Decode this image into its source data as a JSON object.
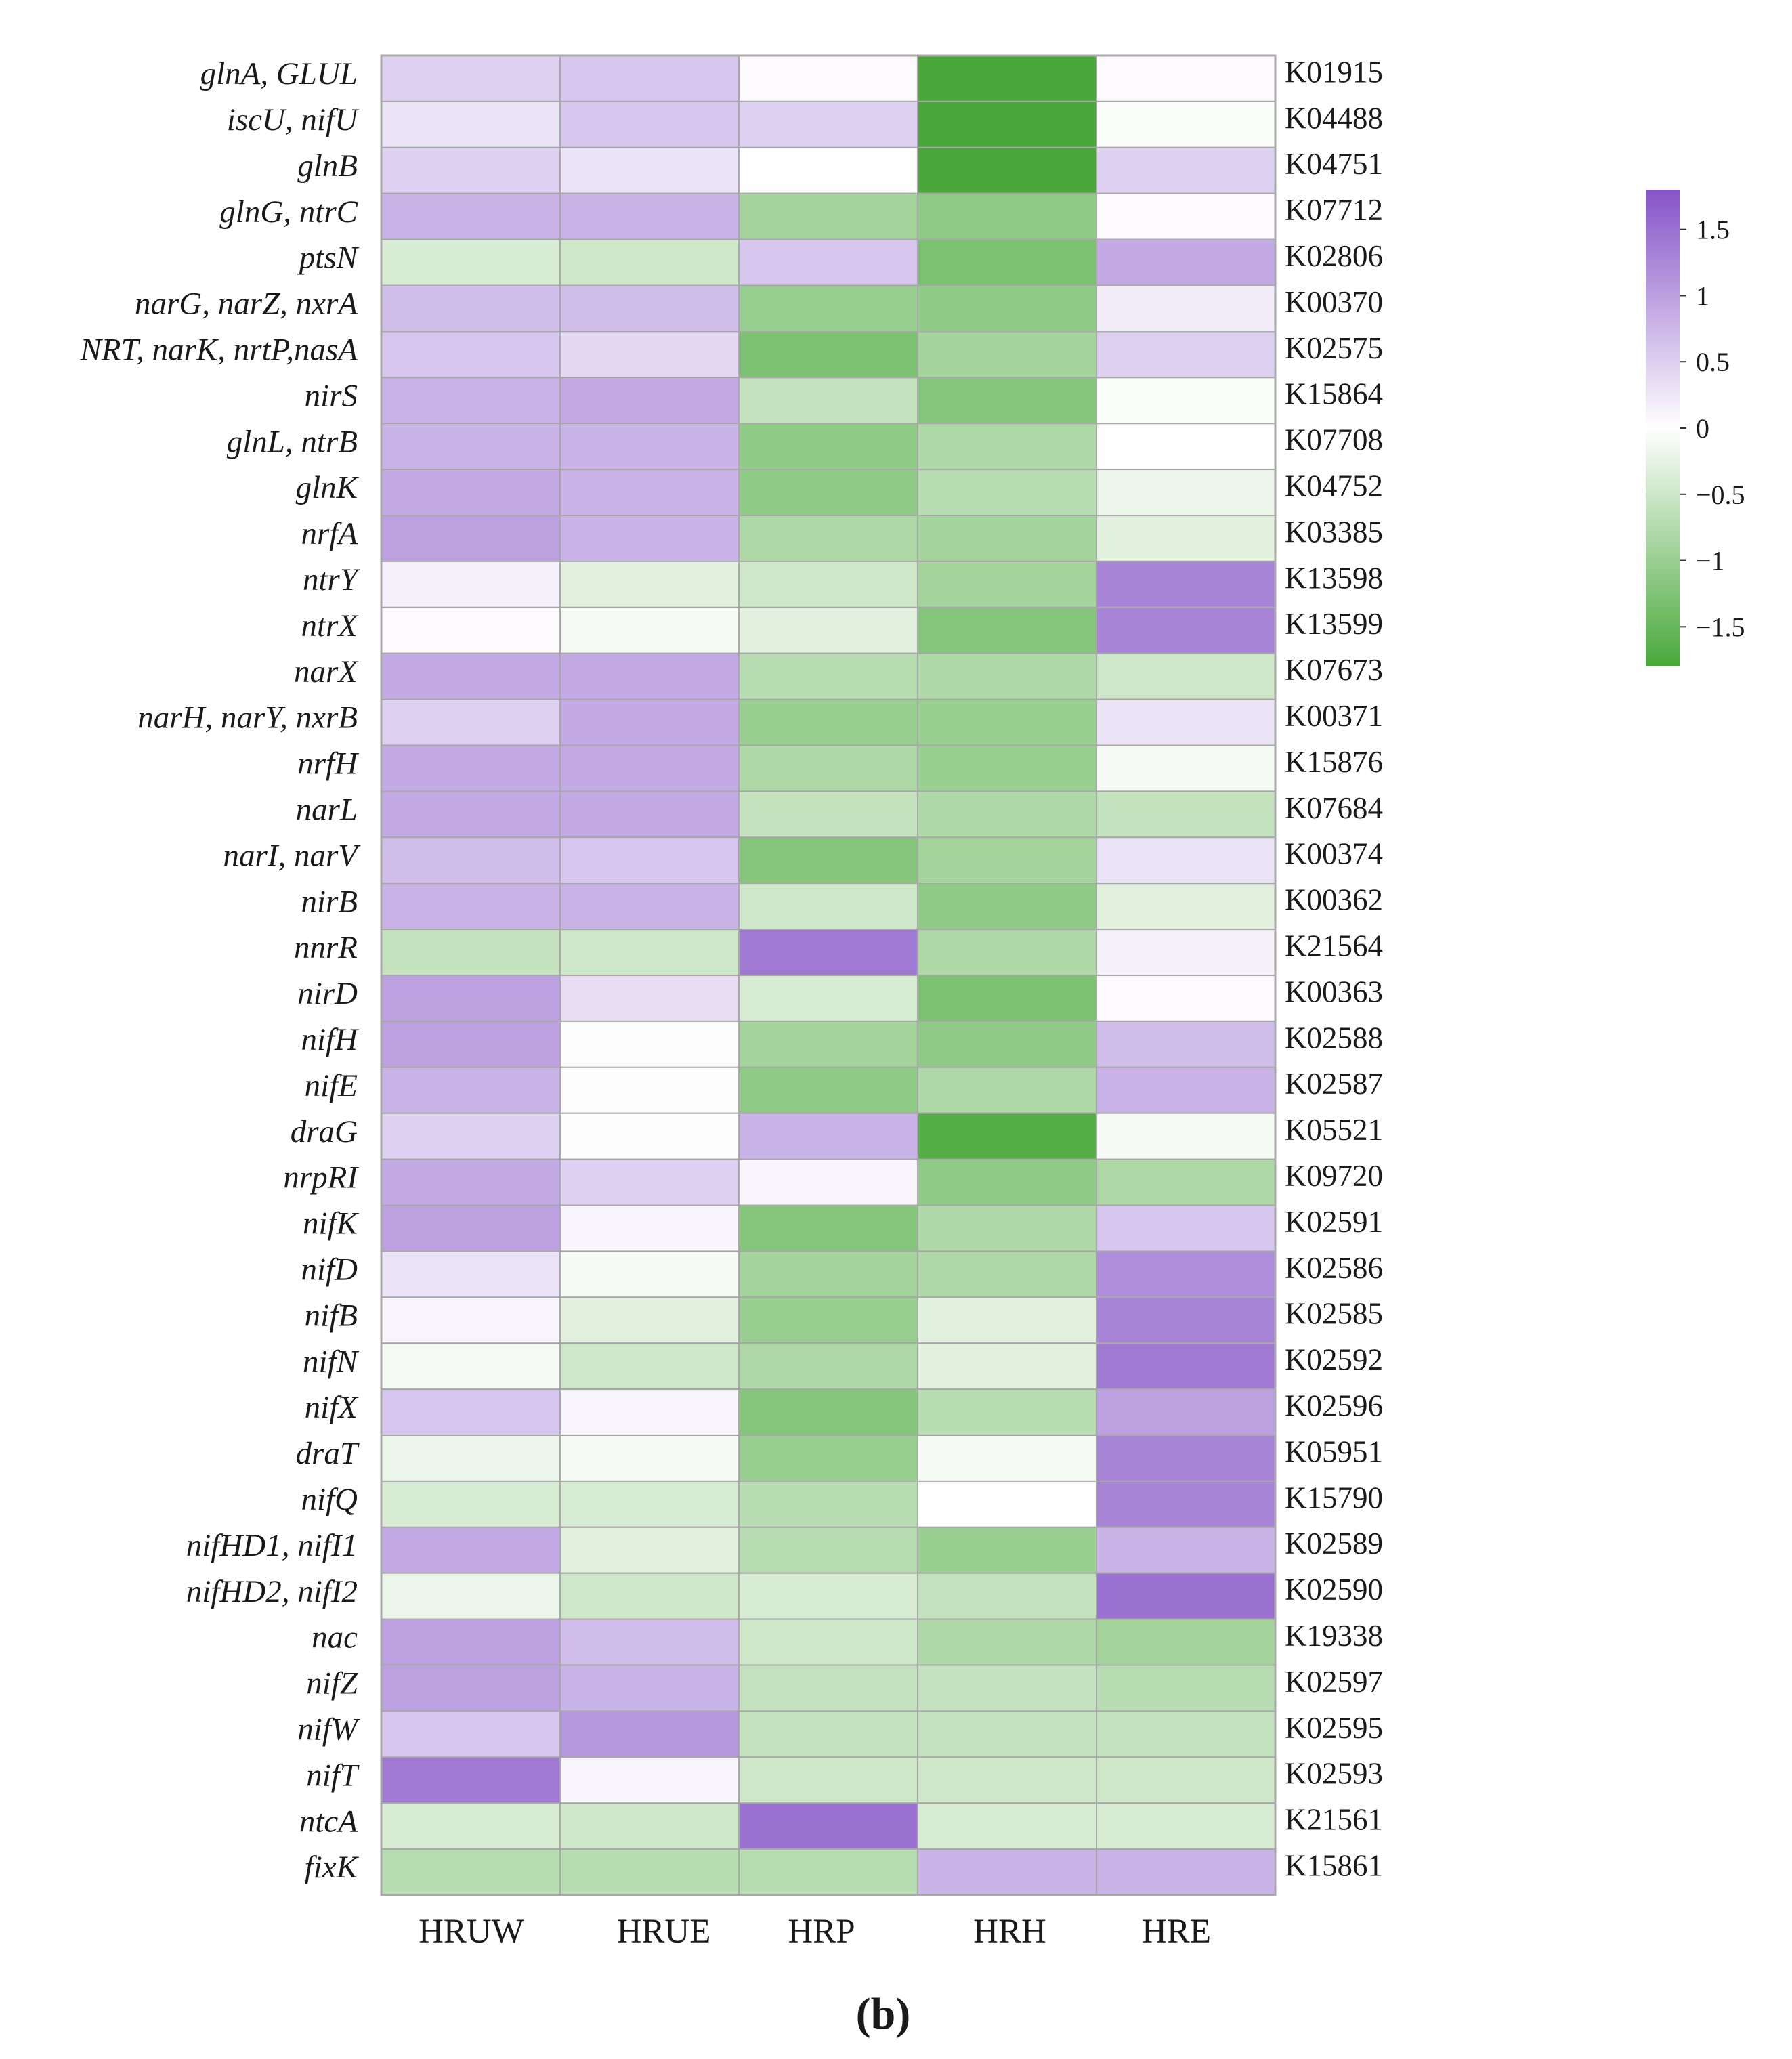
{
  "chart_data": {
    "type": "heatmap",
    "panel_label": "(b)",
    "columns": [
      "HRUW",
      "HRUE",
      "HRP",
      "HRH",
      "HRE"
    ],
    "rows": [
      {
        "gene": "glnA, GLUL",
        "ko": "K01915",
        "values": [
          0.5,
          0.6,
          0.05,
          -1.8,
          0.05
        ]
      },
      {
        "gene": "iscU, nifU",
        "ko": "K04488",
        "values": [
          0.3,
          0.6,
          0.5,
          -1.8,
          -0.05
        ]
      },
      {
        "gene": "glnB",
        "ko": "K04751",
        "values": [
          0.5,
          0.3,
          -0.02,
          -1.8,
          0.5
        ]
      },
      {
        "gene": "glnG, ntrC",
        "ko": "K07712",
        "values": [
          0.8,
          0.8,
          -0.9,
          -1.1,
          0.05
        ]
      },
      {
        "gene": "ptsN",
        "ko": "K02806",
        "values": [
          -0.4,
          -0.5,
          0.6,
          -1.3,
          0.9
        ]
      },
      {
        "gene": "narG, narZ, nxrA",
        "ko": "K00370",
        "values": [
          0.7,
          0.7,
          -1.0,
          -1.1,
          0.2
        ]
      },
      {
        "gene": "NRT, narK, nrtP,nasA",
        "ko": "K02575",
        "values": [
          0.6,
          0.4,
          -1.3,
          -0.9,
          0.5
        ]
      },
      {
        "gene": "nirS",
        "ko": "K15864",
        "values": [
          0.8,
          0.9,
          -0.6,
          -1.2,
          -0.05
        ]
      },
      {
        "gene": "glnL, ntrB",
        "ko": "K07708",
        "values": [
          0.8,
          0.8,
          -1.1,
          -0.8,
          -0.02
        ]
      },
      {
        "gene": "glnK",
        "ko": "K04752",
        "values": [
          0.9,
          0.8,
          -1.1,
          -0.7,
          -0.2
        ]
      },
      {
        "gene": "nrfA",
        "ko": "K03385",
        "values": [
          1.0,
          0.8,
          -0.8,
          -0.9,
          -0.3
        ]
      },
      {
        "gene": "ntrY",
        "ko": "K13598",
        "values": [
          0.15,
          -0.3,
          -0.5,
          -0.9,
          1.3
        ]
      },
      {
        "gene": "ntrX",
        "ko": "K13599",
        "values": [
          0.05,
          -0.1,
          -0.3,
          -1.2,
          1.3
        ]
      },
      {
        "gene": "narX",
        "ko": "K07673",
        "values": [
          0.9,
          0.9,
          -0.7,
          -0.8,
          -0.5
        ]
      },
      {
        "gene": "narH, narY, nxrB",
        "ko": "K00371",
        "values": [
          0.5,
          0.9,
          -1.0,
          -1.0,
          0.3
        ]
      },
      {
        "gene": "nrfH",
        "ko": "K15876",
        "values": [
          0.9,
          0.9,
          -0.8,
          -1.0,
          -0.1
        ]
      },
      {
        "gene": "narL",
        "ko": "K07684",
        "values": [
          0.9,
          0.9,
          -0.6,
          -0.8,
          -0.6
        ]
      },
      {
        "gene": "narI, narV",
        "ko": "K00374",
        "values": [
          0.7,
          0.6,
          -1.2,
          -0.9,
          0.3
        ]
      },
      {
        "gene": "nirB",
        "ko": "K00362",
        "values": [
          0.8,
          0.8,
          -0.5,
          -1.1,
          -0.3
        ]
      },
      {
        "gene": "nnrR",
        "ko": "K21564",
        "values": [
          -0.6,
          -0.5,
          1.4,
          -0.8,
          0.15
        ]
      },
      {
        "gene": "nirD",
        "ko": "K00363",
        "values": [
          1.0,
          0.35,
          -0.4,
          -1.3,
          0.05
        ]
      },
      {
        "gene": "nifH",
        "ko": "K02588",
        "values": [
          1.0,
          0.02,
          -0.9,
          -1.1,
          0.7
        ]
      },
      {
        "gene": "nifE",
        "ko": "K02587",
        "values": [
          0.8,
          0.02,
          -1.1,
          -0.8,
          0.8
        ]
      },
      {
        "gene": "draG",
        "ko": "K05521",
        "values": [
          0.5,
          0.02,
          0.8,
          -1.7,
          -0.1
        ]
      },
      {
        "gene": "nrpRI",
        "ko": "K09720",
        "values": [
          0.9,
          0.5,
          0.1,
          -1.1,
          -0.8
        ]
      },
      {
        "gene": "nifK",
        "ko": "K02591",
        "values": [
          1.0,
          0.1,
          -1.2,
          -0.8,
          0.6
        ]
      },
      {
        "gene": "nifD",
        "ko": "K02586",
        "values": [
          0.3,
          -0.1,
          -0.9,
          -0.8,
          1.2
        ]
      },
      {
        "gene": "nifB",
        "ko": "K02585",
        "values": [
          0.1,
          -0.3,
          -1.0,
          -0.3,
          1.3
        ]
      },
      {
        "gene": "nifN",
        "ko": "K02592",
        "values": [
          -0.1,
          -0.5,
          -0.8,
          -0.3,
          1.4
        ]
      },
      {
        "gene": "nifX",
        "ko": "K02596",
        "values": [
          0.6,
          0.1,
          -1.2,
          -0.7,
          1.0
        ]
      },
      {
        "gene": "draT",
        "ko": "K05951",
        "values": [
          -0.2,
          -0.1,
          -1.0,
          -0.1,
          1.3
        ]
      },
      {
        "gene": "nifQ",
        "ko": "K15790",
        "values": [
          -0.4,
          -0.4,
          -0.7,
          -0.02,
          1.3
        ]
      },
      {
        "gene": "nifHD1, nifI1",
        "ko": "K02589",
        "values": [
          0.9,
          -0.3,
          -0.7,
          -1.0,
          0.8
        ]
      },
      {
        "gene": "nifHD2, nifI2",
        "ko": "K02590",
        "values": [
          -0.2,
          -0.5,
          -0.4,
          -0.6,
          1.5
        ]
      },
      {
        "gene": "nac",
        "ko": "K19338",
        "values": [
          1.0,
          0.7,
          -0.5,
          -0.8,
          -0.9
        ]
      },
      {
        "gene": "nifZ",
        "ko": "K02597",
        "values": [
          1.0,
          0.8,
          -0.6,
          -0.6,
          -0.7
        ]
      },
      {
        "gene": "nifW",
        "ko": "K02595",
        "values": [
          0.6,
          1.1,
          -0.6,
          -0.6,
          -0.6
        ]
      },
      {
        "gene": "nifT",
        "ko": "K02593",
        "values": [
          1.4,
          0.1,
          -0.5,
          -0.5,
          -0.5
        ]
      },
      {
        "gene": "ntcA",
        "ko": "K21561",
        "values": [
          -0.4,
          -0.5,
          1.5,
          -0.4,
          -0.4
        ]
      },
      {
        "gene": "fixK",
        "ko": "K15861",
        "values": [
          -0.7,
          -0.7,
          -0.7,
          0.8,
          0.8
        ]
      }
    ],
    "color_scale": {
      "min": -1.8,
      "max": 1.8,
      "low_color": "#4aa83a",
      "mid_color": "#ffffff",
      "high_color": "#8654c8",
      "ticks": [
        1.5,
        1,
        0.5,
        0,
        -0.5,
        -1,
        -1.5
      ],
      "tick_labels": [
        "1.5",
        "1",
        "0.5",
        "0",
        "−0.5",
        "−1",
        "−1.5"
      ]
    },
    "cell_border_color": "#a8a8a8"
  }
}
